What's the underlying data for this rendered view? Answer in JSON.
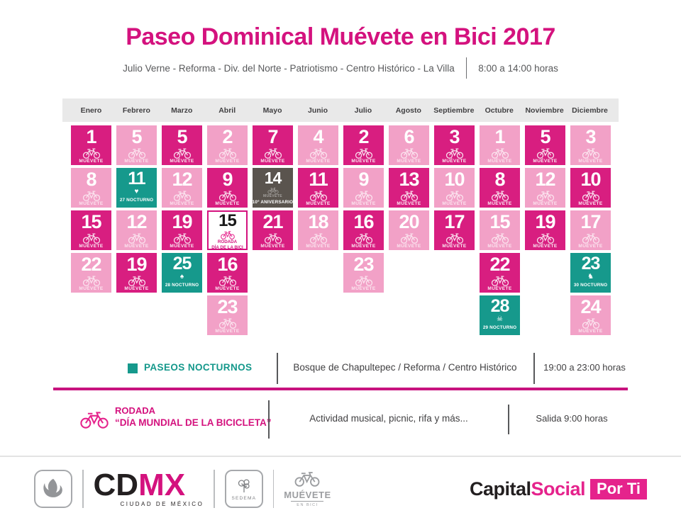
{
  "title": "Paseo Dominical Muévete en Bici 2017",
  "subtitle": {
    "route": "Julio Verne - Reforma - Div. del Norte - Patriotismo - Centro Histórico - La Villa",
    "hours": "8:00 a 14:00 horas"
  },
  "colors": {
    "magenta": "#D81E80",
    "light_pink": "#F2A1C7",
    "teal": "#16998C",
    "dark": "#5A544E",
    "accent": "#D4127E"
  },
  "calendar": {
    "cell_brand": "MUÉVETE",
    "months": [
      {
        "name": "Enero",
        "cells": [
          {
            "day": "1",
            "variant": "magenta"
          },
          {
            "day": "8",
            "variant": "light"
          },
          {
            "day": "15",
            "variant": "magenta"
          },
          {
            "day": "22",
            "variant": "light"
          }
        ]
      },
      {
        "name": "Febrero",
        "cells": [
          {
            "day": "5",
            "variant": "light"
          },
          {
            "day": "11",
            "variant": "teal",
            "icon": "heart-icon",
            "label": "27 NOCTURNO"
          },
          {
            "day": "12",
            "variant": "light"
          },
          {
            "day": "19",
            "variant": "magenta"
          }
        ]
      },
      {
        "name": "Marzo",
        "cells": [
          {
            "day": "5",
            "variant": "magenta"
          },
          {
            "day": "12",
            "variant": "light"
          },
          {
            "day": "19",
            "variant": "magenta"
          },
          {
            "day": "25",
            "variant": "teal",
            "icon": "tree-icon",
            "label": "28 NOCTURNO"
          }
        ]
      },
      {
        "name": "Abril",
        "cells": [
          {
            "day": "2",
            "variant": "light"
          },
          {
            "day": "9",
            "variant": "magenta"
          },
          {
            "day": "15",
            "variant": "white",
            "lines": [
              "RODADA",
              "DÍA DE LA BICI"
            ]
          },
          {
            "day": "16",
            "variant": "magenta"
          },
          {
            "day": "23",
            "variant": "light"
          }
        ]
      },
      {
        "name": "Mayo",
        "cells": [
          {
            "day": "7",
            "variant": "magenta"
          },
          {
            "day": "14",
            "variant": "dark",
            "label": "10º ANIVERSARIO"
          },
          {
            "day": "21",
            "variant": "magenta"
          }
        ]
      },
      {
        "name": "Junio",
        "cells": [
          {
            "day": "4",
            "variant": "light"
          },
          {
            "day": "11",
            "variant": "magenta"
          },
          {
            "day": "18",
            "variant": "light"
          }
        ]
      },
      {
        "name": "Julio",
        "cells": [
          {
            "day": "2",
            "variant": "magenta"
          },
          {
            "day": "9",
            "variant": "light"
          },
          {
            "day": "16",
            "variant": "magenta"
          },
          {
            "day": "23",
            "variant": "light"
          }
        ]
      },
      {
        "name": "Agosto",
        "cells": [
          {
            "day": "6",
            "variant": "light"
          },
          {
            "day": "13",
            "variant": "magenta"
          },
          {
            "day": "20",
            "variant": "light"
          }
        ]
      },
      {
        "name": "Septiembre",
        "cells": [
          {
            "day": "3",
            "variant": "magenta"
          },
          {
            "day": "10",
            "variant": "light"
          },
          {
            "day": "17",
            "variant": "magenta"
          }
        ]
      },
      {
        "name": "Octubre",
        "cells": [
          {
            "day": "1",
            "variant": "light"
          },
          {
            "day": "8",
            "variant": "magenta"
          },
          {
            "day": "15",
            "variant": "light"
          },
          {
            "day": "22",
            "variant": "magenta"
          },
          {
            "day": "28",
            "variant": "teal",
            "icon": "skull-icon",
            "label": "29 NOCTURNO"
          }
        ]
      },
      {
        "name": "Noviembre",
        "cells": [
          {
            "day": "5",
            "variant": "magenta"
          },
          {
            "day": "12",
            "variant": "light"
          },
          {
            "day": "19",
            "variant": "magenta"
          }
        ]
      },
      {
        "name": "Diciembre",
        "cells": [
          {
            "day": "3",
            "variant": "light"
          },
          {
            "day": "10",
            "variant": "magenta"
          },
          {
            "day": "17",
            "variant": "light"
          },
          {
            "day": "23",
            "variant": "teal",
            "icon": "reindeer-icon",
            "label": "30 NOCTURNO"
          },
          {
            "day": "24",
            "variant": "light"
          }
        ]
      }
    ]
  },
  "legend_nocturnos": {
    "label": "PASEOS NOCTURNOS",
    "route": "Bosque de Chapultepec / Reforma / Centro Histórico",
    "hours": "19:00 a 23:00 horas"
  },
  "legend_rodada": {
    "title": "RODADA",
    "subtitle": "“DÍA MUNDIAL DE LA BICICLETA”",
    "description": "Actividad musical, picnic, rifa y más...",
    "hours": "Salida 9:00 horas"
  },
  "footer": {
    "cdmx_cd": "CD",
    "cdmx_mx": "MX",
    "cdmx_sub": "CIUDAD DE MÉXICO",
    "sedema": "SEDEMA",
    "muevete_line1": "MUÉVETE",
    "muevete_line2": "EN BICI",
    "capital_black": "Capital",
    "capital_pink": "Social",
    "capital_box": "Por Ti"
  }
}
